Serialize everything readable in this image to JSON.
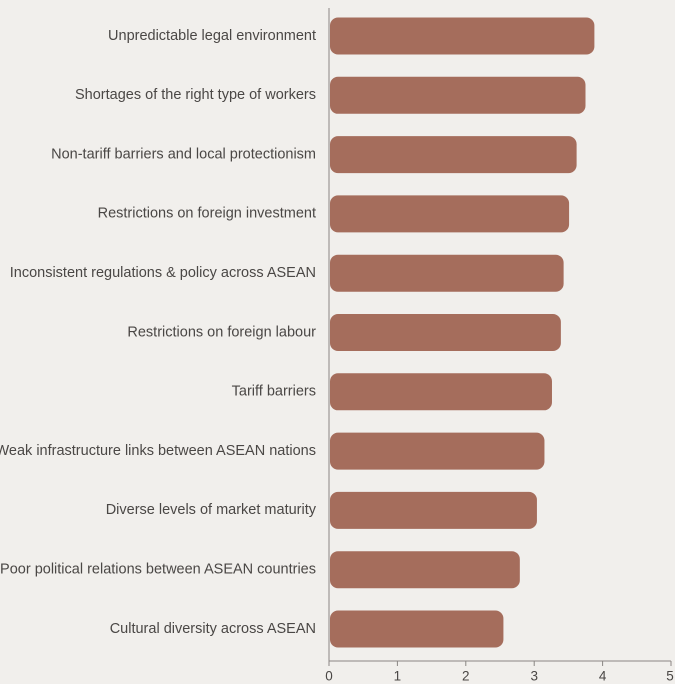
{
  "colors": {
    "background": "#f1efec",
    "bar": "#a56d5c",
    "axis": "#8a8683",
    "text": "#4a4745"
  },
  "chart_data": {
    "type": "bar",
    "orientation": "horizontal",
    "categories": [
      "Unpredictable legal environment",
      "Shortages of the right type of workers",
      "Non-tariff barriers and local protectionism",
      "Restrictions on foreign investment",
      "Inconsistent regulations & policy across ASEAN",
      "Restrictions on foreign labour",
      "Tariff barriers",
      "Weak infrastructure links between ASEAN nations",
      "Diverse levels of market maturity",
      "Poor political relations between ASEAN countries",
      "Cultural diversity across ASEAN"
    ],
    "values": [
      3.88,
      3.75,
      3.62,
      3.51,
      3.43,
      3.39,
      3.26,
      3.15,
      3.04,
      2.79,
      2.55
    ],
    "xlim": [
      0,
      5
    ],
    "xticks": [
      "0",
      "1",
      "2",
      "3",
      "4",
      "5"
    ],
    "title": "",
    "xlabel": "",
    "ylabel": "",
    "grid": false,
    "legend": "none"
  }
}
